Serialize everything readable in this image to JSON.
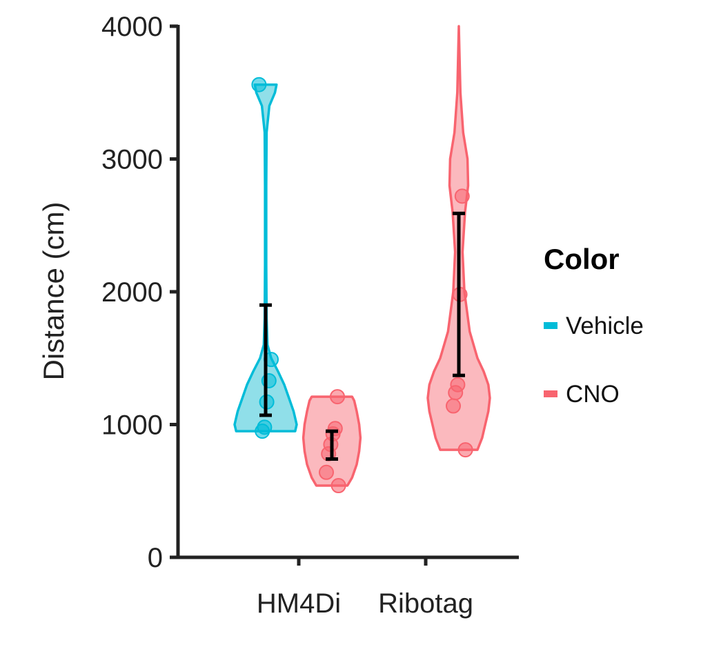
{
  "chart_data": {
    "type": "violin",
    "ylabel": "Distance (cm)",
    "xlabel": "",
    "ylim": [
      0,
      4000
    ],
    "yticks": [
      0,
      1000,
      2000,
      3000,
      4000
    ],
    "categories": [
      "HM4Di",
      "Ribotag"
    ],
    "legend": {
      "title": "Color",
      "position": "right",
      "items": [
        {
          "label": "Vehicle",
          "color": "#00BCD8"
        },
        {
          "label": "CNO",
          "color": "#F8646F"
        }
      ]
    },
    "grid": false,
    "groups": [
      {
        "category": "HM4Di",
        "series": "Vehicle",
        "color": "#00BCD8",
        "fill": "#8ADDE8",
        "points": [
          3560,
          1490,
          1330,
          1170,
          980,
          950
        ],
        "error_bar": {
          "center": 1480,
          "low": 1070,
          "high": 1900
        },
        "violin": {
          "range": [
            950,
            3560
          ],
          "profile": [
            [
              950,
              0.95
            ],
            [
              1000,
              1.0
            ],
            [
              1100,
              0.9
            ],
            [
              1200,
              0.75
            ],
            [
              1300,
              0.6
            ],
            [
              1400,
              0.4
            ],
            [
              1500,
              0.18
            ],
            [
              1600,
              0.06
            ],
            [
              1800,
              0.03
            ],
            [
              2200,
              0.02
            ],
            [
              2800,
              0.02
            ],
            [
              3200,
              0.03
            ],
            [
              3400,
              0.12
            ],
            [
              3500,
              0.3
            ],
            [
              3560,
              0.35
            ]
          ]
        }
      },
      {
        "category": "HM4Di",
        "series": "CNO",
        "color": "#F8646F",
        "fill": "#FBB5BA",
        "points": [
          1210,
          970,
          930,
          850,
          780,
          640,
          540
        ],
        "error_bar": {
          "center": 850,
          "low": 740,
          "high": 950
        },
        "violin": {
          "range": [
            540,
            1210
          ],
          "profile": [
            [
              540,
              0.5
            ],
            [
              600,
              0.65
            ],
            [
              700,
              0.8
            ],
            [
              800,
              0.88
            ],
            [
              900,
              0.92
            ],
            [
              1000,
              0.88
            ],
            [
              1100,
              0.8
            ],
            [
              1180,
              0.72
            ],
            [
              1210,
              0.65
            ]
          ]
        }
      },
      {
        "category": "Ribotag",
        "series": "CNO",
        "color": "#F8646F",
        "fill": "#FBB5BA",
        "points": [
          2720,
          1980,
          1300,
          1240,
          1140,
          810
        ],
        "error_bar": {
          "center": 1980,
          "low": 1370,
          "high": 2590
        },
        "violin": {
          "range": [
            810,
            4000
          ],
          "profile": [
            [
              810,
              0.6
            ],
            [
              900,
              0.75
            ],
            [
              1000,
              0.85
            ],
            [
              1100,
              0.95
            ],
            [
              1200,
              1.0
            ],
            [
              1300,
              0.95
            ],
            [
              1400,
              0.8
            ],
            [
              1500,
              0.6
            ],
            [
              1700,
              0.35
            ],
            [
              2000,
              0.18
            ],
            [
              2300,
              0.12
            ],
            [
              2600,
              0.2
            ],
            [
              2800,
              0.3
            ],
            [
              3000,
              0.28
            ],
            [
              3200,
              0.14
            ],
            [
              3500,
              0.05
            ],
            [
              3800,
              0.02
            ],
            [
              4000,
              0.0
            ]
          ]
        }
      }
    ]
  }
}
